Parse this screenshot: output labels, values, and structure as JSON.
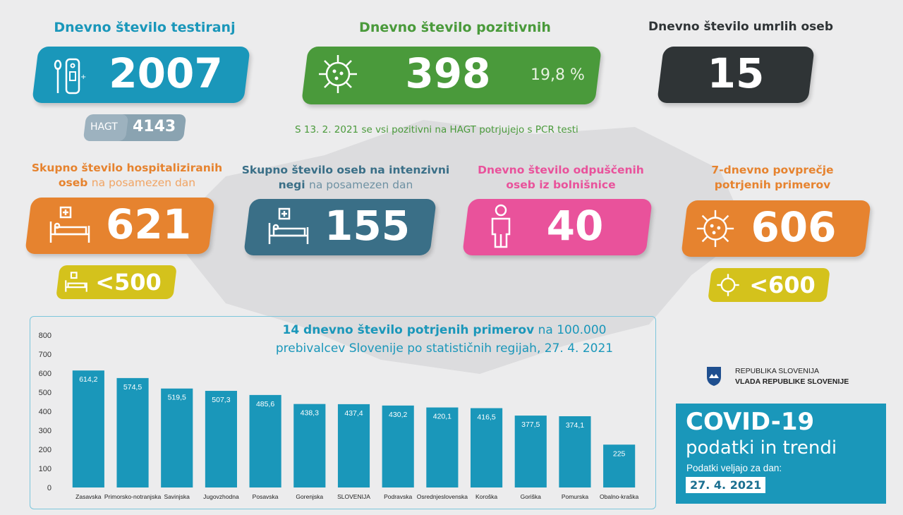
{
  "testing": {
    "title": "Dnevno število testiranj",
    "value": "2007",
    "hagt_label": "HAGT",
    "hagt_value": "4143",
    "color": "#1a97ba"
  },
  "positive": {
    "title": "Dnevno število pozitivnih",
    "value": "398",
    "percent": "19,8 %",
    "note": "S 13. 2. 2021 se vsi pozitivni na HAGT potrjujejo s PCR testi",
    "color": "#4a9a3b"
  },
  "deaths": {
    "title": "Dnevno število umrlih oseb",
    "value": "15",
    "color": "#2f3436"
  },
  "hospitalized": {
    "title_bold": "Skupno število hospitaliziranih oseb",
    "title_light": "na posamezen dan",
    "value": "621",
    "threshold": "<500",
    "color": "#e6832f"
  },
  "icu": {
    "title_bold1": "Skupno število oseb na intenzivni",
    "title_bold2": "negi",
    "title_light": "na posamezen dan",
    "value": "155",
    "color": "#3a6f87"
  },
  "discharged": {
    "title1": "Dnevno število odpuščenih",
    "title2": "oseb iz bolnišnice",
    "value": "40",
    "color": "#e9529b"
  },
  "avg7": {
    "title1": "7-dnevno povprečje",
    "title2": "potrjenih primerov",
    "value": "606",
    "threshold": "<600",
    "color": "#e6832f"
  },
  "threshold_color": "#d4c21c",
  "chart_title": {
    "bold": "14 dnevno število potrjenih primerov",
    "rest": "na 100.000",
    "line2": "prebivalcev Slovenije po statističnih regijah, 27. 4. 2021"
  },
  "chart_data": {
    "type": "bar",
    "categories": [
      "Zasavska",
      "Primorsko-notranjska",
      "Savinjska",
      "Jugovzhodna",
      "Posavska",
      "Gorenjska",
      "SLOVENIJA",
      "Podravska",
      "Osrednjeslovenska",
      "Koroška",
      "Goriška",
      "Pomurska",
      "Obalno-kraška"
    ],
    "values": [
      614.2,
      574.5,
      519.5,
      507.3,
      485.6,
      438.3,
      437.4,
      430.2,
      420.1,
      416.5,
      377.5,
      374.1,
      225
    ],
    "value_labels": [
      "614,2",
      "574,5",
      "519,5",
      "507,3",
      "485,6",
      "438,3",
      "437,4",
      "430,2",
      "420,1",
      "416,5",
      "377,5",
      "374,1",
      "225"
    ],
    "ylim": [
      0,
      800
    ],
    "yticks": [
      "0",
      "100",
      "200",
      "300",
      "400",
      "500",
      "600",
      "700",
      "800"
    ],
    "title": "14 dnevno število potrjenih primerov na 100.000 prebivalcev Slovenije po statističnih regijah, 27. 4. 2021",
    "grid": false
  },
  "gov": {
    "line1": "REPUBLIKA SLOVENIJA",
    "line2": "VLADA REPUBLIKE SLOVENIJE"
  },
  "covid_box": {
    "title": "COVID-19",
    "subtitle": "podatki in trendi",
    "valid_label": "Podatki veljajo za dan:",
    "date": "27. 4. 2021",
    "color": "#1a97ba"
  }
}
